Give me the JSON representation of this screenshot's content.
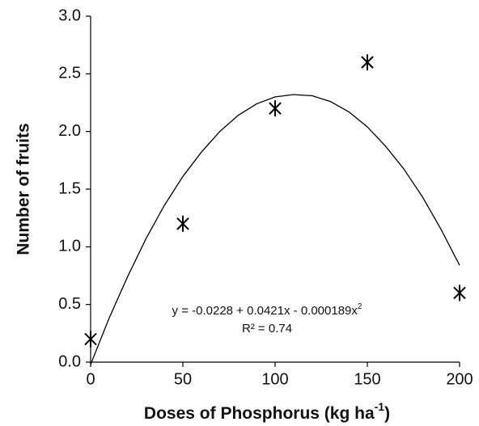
{
  "chart_data": {
    "type": "scatter",
    "xlabel": {
      "main": "Doses of  Phosphorus (kg ha",
      "sup": "-1",
      "end": ")"
    },
    "ylabel": "Number of fruits",
    "series": [
      {
        "x": [
          0,
          50,
          100,
          150,
          200
        ],
        "values": [
          0.2,
          1.2,
          2.2,
          2.6,
          0.6
        ],
        "color": "#000000",
        "marker": "asterisk"
      }
    ],
    "trendline": {
      "color": "#000000",
      "x": [
        0,
        10,
        20,
        30,
        40,
        50,
        60,
        70,
        80,
        90,
        100,
        110,
        120,
        130,
        140,
        150,
        160,
        170,
        180,
        190,
        200
      ],
      "values": [
        -0.02,
        0.38,
        0.74,
        1.07,
        1.36,
        1.61,
        1.82,
        2.0,
        2.14,
        2.24,
        2.3,
        2.32,
        2.31,
        2.26,
        2.17,
        2.04,
        1.87,
        1.67,
        1.43,
        1.15,
        0.84
      ]
    },
    "annotations": {
      "equation": {
        "main": "y = -0.0228 + 0.0421x - 0.000189x",
        "sup": "2"
      },
      "r2": "R² = 0.74"
    },
    "xlim": [
      0,
      200
    ],
    "xticks": [
      0,
      50,
      100,
      150,
      200
    ],
    "ylim": [
      0,
      3
    ],
    "yticks": [
      {
        "value": 0,
        "label": "0.0"
      },
      {
        "value": 0.5,
        "label": "0.5"
      },
      {
        "value": 1,
        "label": "1.0"
      },
      {
        "value": 1.5,
        "label": "1.5"
      },
      {
        "value": 2,
        "label": "2.0"
      },
      {
        "value": 2.5,
        "label": "2.5"
      },
      {
        "value": 3,
        "label": "3.0"
      }
    ],
    "grid": false
  }
}
